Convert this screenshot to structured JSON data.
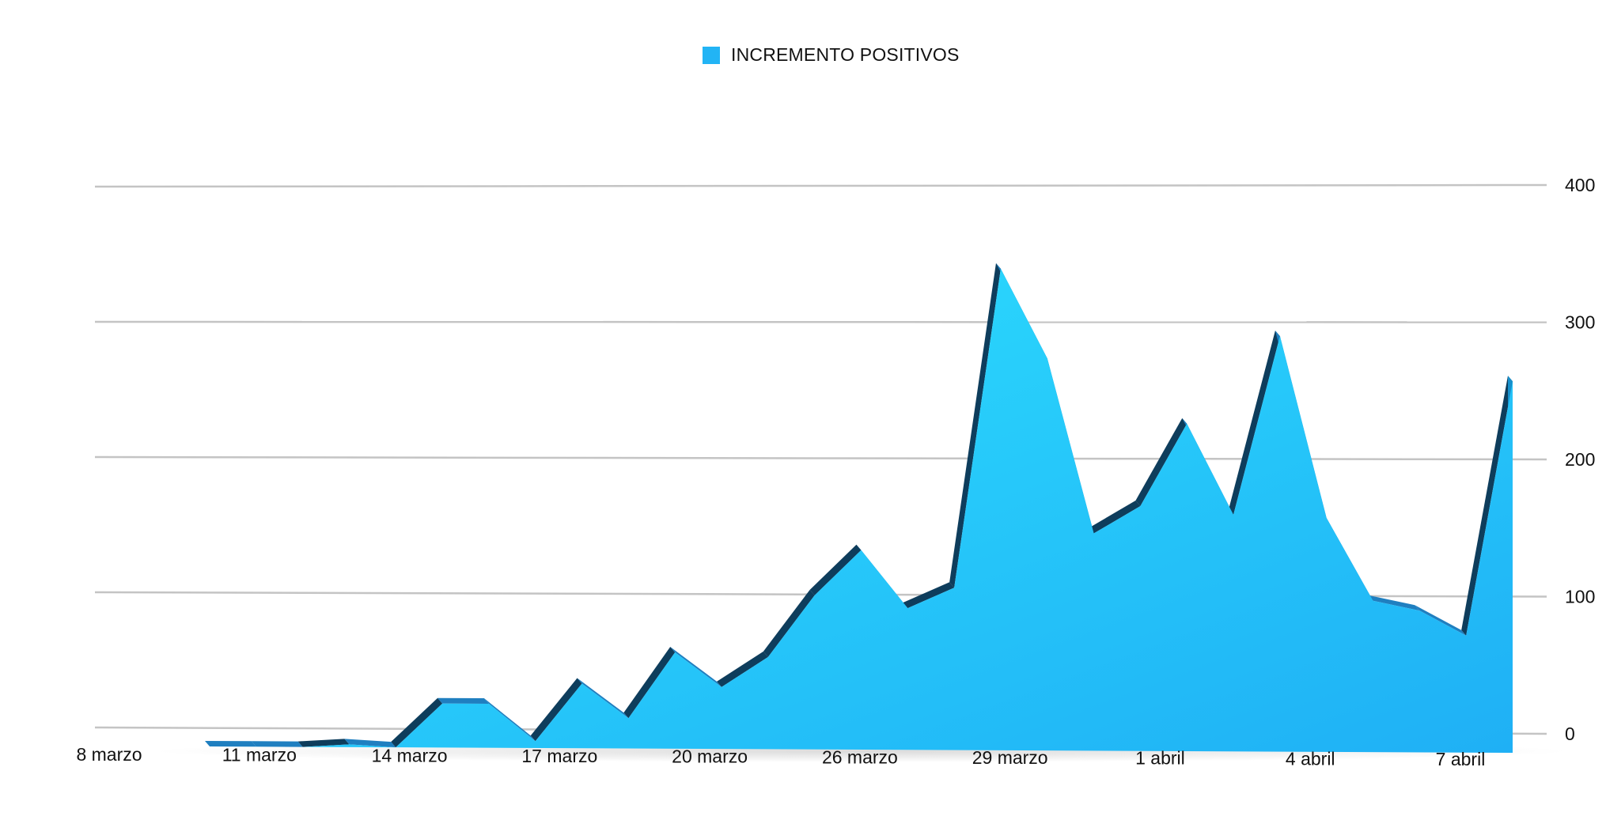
{
  "chart_data": {
    "type": "area",
    "title": "",
    "legend": {
      "position": "top-center",
      "entries": [
        "INCREMENTO POSITIVOS"
      ]
    },
    "series": [
      {
        "name": "INCREMENTO POSITIVOS",
        "color": "#22b4f5",
        "values": [
          0,
          0,
          0,
          2,
          0,
          32,
          32,
          5,
          47,
          22,
          70,
          45,
          67,
          112,
          145,
          103,
          118,
          350,
          285,
          158,
          178,
          238,
          172,
          302,
          170,
          110,
          103,
          85,
          270
        ]
      }
    ],
    "x_tick_labels": [
      "8 marzo",
      "11 marzo",
      "14 marzo",
      "17 marzo",
      "20 marzo",
      "26 marzo",
      "29 marzo",
      "1 abril",
      "4 abril",
      "7 abril"
    ],
    "y_axis": {
      "position": "right",
      "ticks": [
        "0",
        "100",
        "200",
        "300",
        "400"
      ],
      "ylim": [
        0,
        400
      ]
    },
    "grid": true
  }
}
